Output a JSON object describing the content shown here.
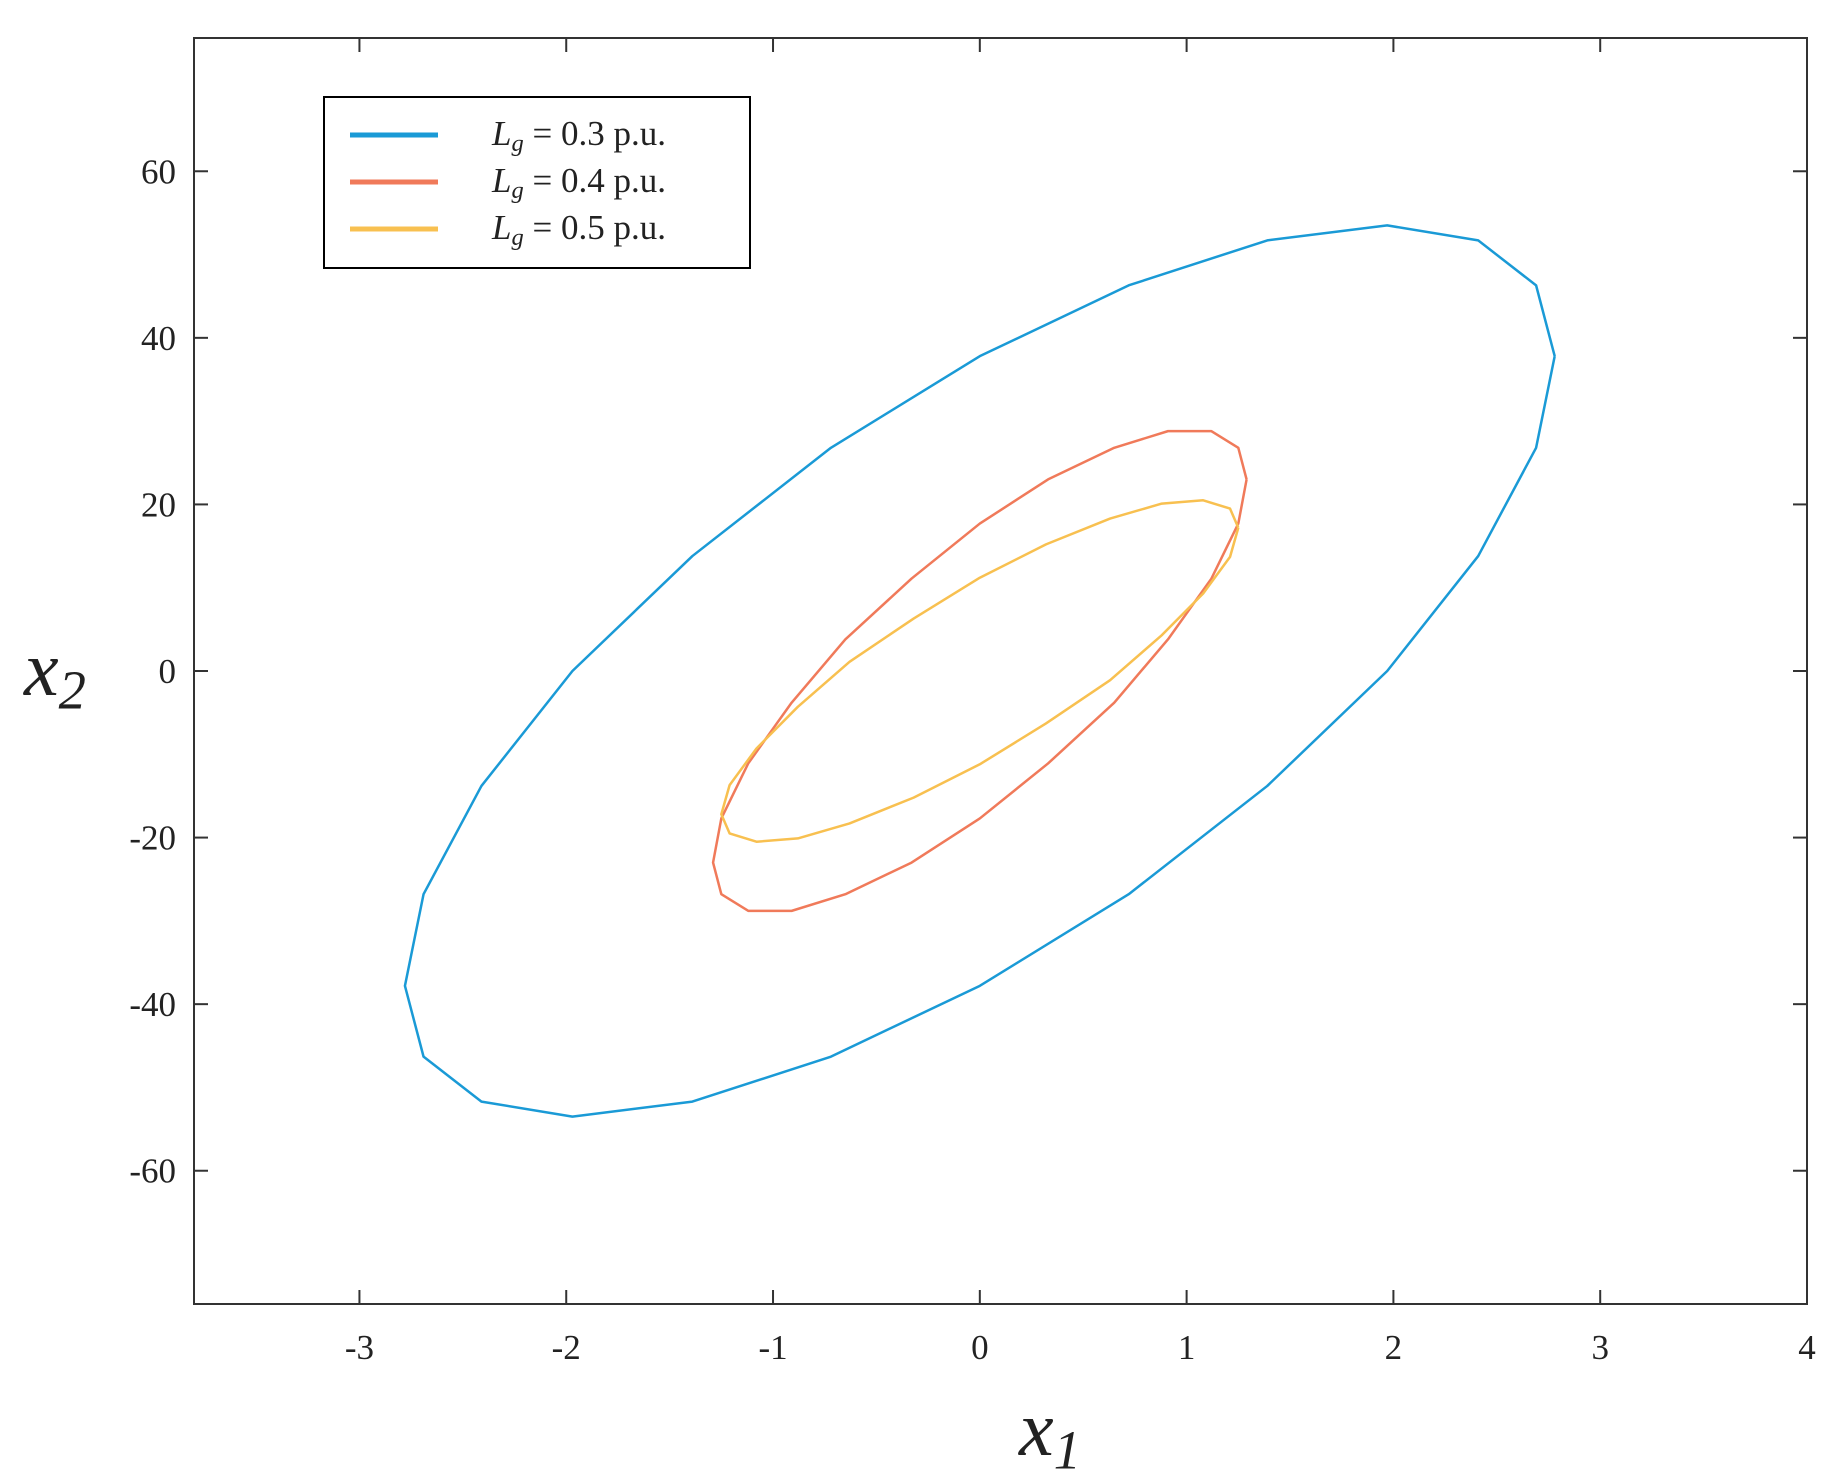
{
  "chart_data": {
    "type": "line",
    "xlabel": "x1",
    "ylabel": "x2",
    "xlim": [
      -3.8,
      4
    ],
    "ylim": [
      -76,
      76
    ],
    "xticks": [
      -3,
      -2,
      -1,
      0,
      1,
      2,
      3,
      4
    ],
    "yticks": [
      -60,
      -40,
      -20,
      0,
      20,
      40,
      60
    ],
    "grid": false,
    "legend": "upper left",
    "series": [
      {
        "name": "Lg = 0.3 p.u.",
        "color": "#1a9ad6",
        "x": [
          2.78,
          2.69,
          2.41,
          1.97,
          1.39,
          0.72,
          0,
          -0.72,
          -1.39,
          -1.97,
          -2.41,
          -2.69,
          -2.78,
          -2.69,
          -2.41,
          -1.97,
          -1.39,
          -0.72,
          0,
          0.72,
          1.39,
          1.97,
          2.41,
          2.69,
          2.78
        ],
        "values": [
          37.8,
          46.3,
          51.7,
          53.5,
          51.7,
          46.3,
          37.8,
          26.8,
          13.8,
          0,
          -13.8,
          -26.8,
          -37.8,
          -46.3,
          -51.7,
          -53.5,
          -51.7,
          -46.3,
          -37.8,
          -26.8,
          -13.8,
          0,
          13.8,
          26.8,
          37.8
        ]
      },
      {
        "name": "Lg = 0.4 p.u.",
        "color": "#f07a5a",
        "x": [
          1.29,
          1.25,
          1.12,
          0.91,
          0.65,
          0.33,
          0,
          -0.33,
          -0.65,
          -0.91,
          -1.12,
          -1.25,
          -1.29,
          -1.25,
          -1.12,
          -0.91,
          -0.65,
          -0.33,
          0,
          0.33,
          0.65,
          0.91,
          1.12,
          1.25,
          1.29
        ],
        "values": [
          23.0,
          26.8,
          28.8,
          28.8,
          26.8,
          23.0,
          17.7,
          11.1,
          3.8,
          -3.8,
          -11.1,
          -17.7,
          -23.0,
          -26.8,
          -28.8,
          -28.8,
          -26.8,
          -23.0,
          -17.7,
          -11.1,
          -3.8,
          3.8,
          11.1,
          17.7,
          23.0
        ]
      },
      {
        "name": "Lg = 0.5 p.u.",
        "color": "#f8c050",
        "x": [
          1.25,
          1.21,
          1.08,
          0.88,
          0.63,
          0.32,
          0,
          -0.32,
          -0.63,
          -0.88,
          -1.08,
          -1.21,
          -1.25,
          -1.21,
          -1.08,
          -0.88,
          -0.63,
          -0.32,
          0,
          0.32,
          0.63,
          0.88,
          1.08,
          1.21,
          1.25
        ],
        "values": [
          17.2,
          19.5,
          20.5,
          20.1,
          18.3,
          15.2,
          11.2,
          6.3,
          1.1,
          -4.3,
          -9.3,
          -13.7,
          -17.2,
          -19.5,
          -20.5,
          -20.1,
          -18.3,
          -15.2,
          -11.2,
          -6.3,
          -1.1,
          4.3,
          9.3,
          13.7,
          17.2
        ]
      }
    ]
  }
}
